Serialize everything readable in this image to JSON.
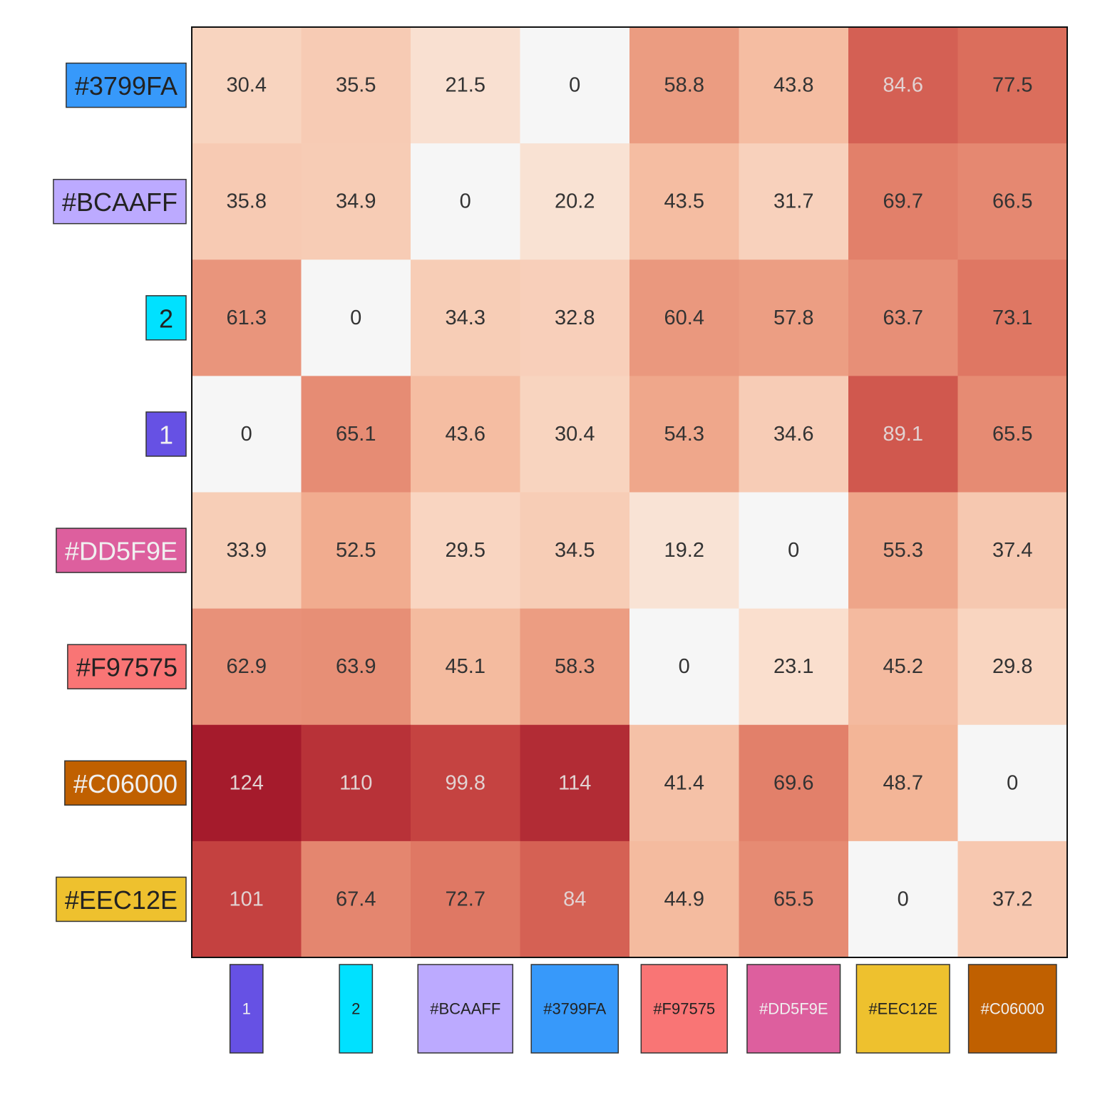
{
  "chart_data": {
    "type": "heatmap",
    "rows": [
      {
        "label": "#3799FA",
        "color": "#3799FA",
        "text_color": "#222222",
        "values": [
          30.4,
          35.5,
          21.5,
          0,
          58.8,
          43.8,
          84.6,
          77.5
        ]
      },
      {
        "label": "#BCAAFF",
        "color": "#BCAAFF",
        "text_color": "#222222",
        "values": [
          35.8,
          34.9,
          0,
          20.2,
          43.5,
          31.7,
          69.7,
          66.5
        ]
      },
      {
        "label": "2",
        "color": "#00E1FF",
        "text_color": "#222222",
        "values": [
          61.3,
          0,
          34.3,
          32.8,
          60.4,
          57.8,
          63.7,
          73.1
        ]
      },
      {
        "label": "1",
        "color": "#6651E4",
        "text_color": "#F0F0F0",
        "values": [
          0,
          65.1,
          43.6,
          30.4,
          54.3,
          34.6,
          89.1,
          65.5
        ]
      },
      {
        "label": "#DD5F9E",
        "color": "#DD5F9E",
        "text_color": "#F0F0F0",
        "values": [
          33.9,
          52.5,
          29.5,
          34.5,
          19.2,
          0,
          55.3,
          37.4
        ]
      },
      {
        "label": "#F97575",
        "color": "#F97575",
        "text_color": "#222222",
        "values": [
          62.9,
          63.9,
          45.1,
          58.3,
          0,
          23.1,
          45.2,
          29.8
        ]
      },
      {
        "label": "#C06000",
        "color": "#C06000",
        "text_color": "#F0F0F0",
        "values": [
          124,
          110,
          99.8,
          114,
          41.4,
          69.6,
          48.7,
          0
        ]
      },
      {
        "label": "#EEC12E",
        "color": "#EEC12E",
        "text_color": "#222222",
        "values": [
          101,
          67.4,
          72.7,
          84,
          44.9,
          65.5,
          0,
          37.2
        ]
      }
    ],
    "columns": [
      {
        "label": "1",
        "color": "#6651E4",
        "text_color": "#F0F0F0"
      },
      {
        "label": "2",
        "color": "#00E1FF",
        "text_color": "#222222"
      },
      {
        "label": "#BCAAFF",
        "color": "#BCAAFF",
        "text_color": "#222222"
      },
      {
        "label": "#3799FA",
        "color": "#3799FA",
        "text_color": "#222222"
      },
      {
        "label": "#F97575",
        "color": "#F97575",
        "text_color": "#222222"
      },
      {
        "label": "#DD5F9E",
        "color": "#DD5F9E",
        "text_color": "#F0F0F0"
      },
      {
        "label": "#EEC12E",
        "color": "#EEC12E",
        "text_color": "#222222"
      },
      {
        "label": "#C06000",
        "color": "#C06000",
        "text_color": "#F0F0F0"
      }
    ],
    "color_scale": {
      "min": 0,
      "max": 124,
      "stops": [
        "#F6F6F6",
        "#FADDCB",
        "#F3B395",
        "#DE7460",
        "#C64442",
        "#A51B2C"
      ]
    },
    "grid": false,
    "legend": "none"
  }
}
